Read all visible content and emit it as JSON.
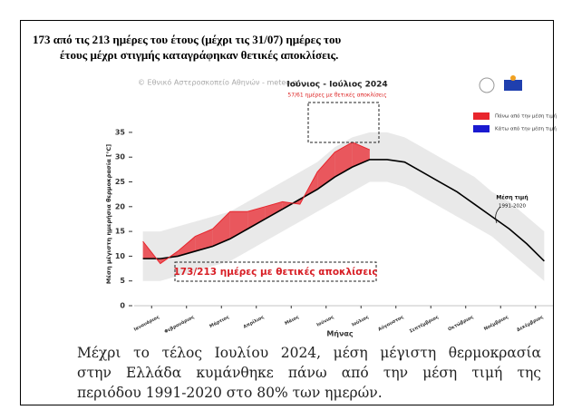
{
  "header": {
    "lines": [
      "173 από τις 213 ημέρες του έτους (μέχρι τις 31/07) ημέρες του",
      "έτους μέχρι στιγμής καταγράφηκαν θετικές αποκλίσεις."
    ]
  },
  "caption": {
    "lines": [
      "Μέχρι το τέλος Ιουλίου 2024, μέση μέγιστη θερμοκρασία",
      "στην Ελλάδα κυμάνθηκε πάνω από την μέση τιμή της",
      "περιόδου 1991-2020 στο 80% των ημερών."
    ]
  },
  "chart_data": {
    "type": "line",
    "credit": "© Εθνικό Αστεροσκοπείο Αθηνών - meteo.gr",
    "title": "Ιούνιος - Ιούλιος 2024",
    "subtitle": "57/61 ημέρες με θετικές αποκλίσεις",
    "annotation": "173/213 ημέρες με θετικές αποκλίσεις",
    "mean_label": [
      "Μέση τιμή",
      "1991-2020"
    ],
    "y_label": "Μέση μέγιστη ημερήσια θερμοκρασία [°C]",
    "x_label": "Μήνας",
    "legend_position": "top-right",
    "legend": [
      {
        "label": "Πάνω από την μέση τιμή",
        "color": "#e8262d"
      },
      {
        "label": "Κάτω από την μέση τιμή",
        "color": "#1a1ad0"
      }
    ],
    "xlim": [
      0,
      12
    ],
    "xticks": [
      {
        "value": 0.5,
        "label": "Ιανουάριος"
      },
      {
        "value": 1.5,
        "label": "Φεβρουάριος"
      },
      {
        "value": 2.5,
        "label": "Μάρτιος"
      },
      {
        "value": 3.5,
        "label": "Απρίλιος"
      },
      {
        "value": 4.5,
        "label": "Μάιος"
      },
      {
        "value": 5.5,
        "label": "Ιούνιος"
      },
      {
        "value": 6.5,
        "label": "Ιούλιος"
      },
      {
        "value": 7.5,
        "label": "Αύγουστος"
      },
      {
        "value": 8.5,
        "label": "Σεπτέμβριος"
      },
      {
        "value": 9.5,
        "label": "Οκτώβριος"
      },
      {
        "value": 10.5,
        "label": "Νοέμβριος"
      },
      {
        "value": 11.5,
        "label": "Δεκέμβριος"
      }
    ],
    "ylim": [
      0,
      37
    ],
    "yticks": [
      0,
      5,
      10,
      15,
      20,
      25,
      30,
      35
    ],
    "x": [
      0.25,
      0.75,
      1.25,
      1.75,
      2.25,
      2.75,
      3.25,
      3.75,
      4.25,
      4.75,
      5.25,
      5.75,
      6.25,
      6.75,
      7.25,
      7.75,
      8.25,
      8.75,
      9.25,
      9.75,
      10.25,
      10.75,
      11.25,
      11.75
    ],
    "series": [
      {
        "color": "#000000",
        "values": [
          9.5,
          9.5,
          10,
          11,
          12,
          13.5,
          15.5,
          17.5,
          19.5,
          21.5,
          23.5,
          26,
          28,
          29.5,
          29.5,
          29,
          27,
          25,
          23,
          20.5,
          18,
          15.5,
          12.5,
          9
        ]
      },
      {
        "color": "#e8262d",
        "values": [
          13,
          8.5,
          11,
          14,
          15.5,
          19,
          19,
          20,
          21,
          20.5,
          27,
          31,
          33,
          31.5,
          null,
          null,
          null,
          null,
          null,
          null,
          null,
          null,
          null,
          null
        ]
      }
    ],
    "range": {
      "color": "#e4e4e4",
      "low": [
        5,
        5,
        6,
        7,
        8,
        9,
        11,
        13,
        15,
        17,
        19,
        21,
        23,
        25,
        25,
        24,
        22,
        20,
        18,
        16,
        14,
        11,
        8,
        5
      ],
      "high": [
        15,
        15,
        16,
        17,
        18,
        19,
        21,
        23,
        25,
        27,
        29,
        32,
        34,
        35,
        35,
        34,
        32,
        30,
        28,
        26,
        23,
        21,
        18,
        15
      ]
    }
  }
}
